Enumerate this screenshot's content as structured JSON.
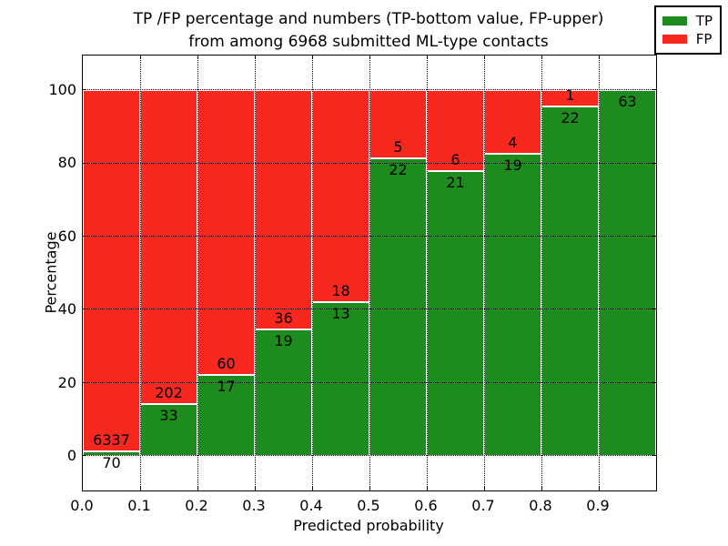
{
  "title": {
    "line1": "TP /FP percentage and numbers (TP-bottom value, FP-upper)",
    "line2": "from among 6968 submitted ML-type contacts"
  },
  "y_axis": {
    "label": "Percentage",
    "tick_labels": [
      "0",
      "20",
      "40",
      "60",
      "80",
      "100"
    ],
    "tick_values": [
      0,
      20,
      40,
      60,
      80,
      100
    ]
  },
  "x_axis": {
    "label": "Predicted probability",
    "tick_labels": [
      "0.0",
      "0.1",
      "0.2",
      "0.3",
      "0.4",
      "0.5",
      "0.6",
      "0.7",
      "0.8",
      "0.9"
    ],
    "tick_values": [
      0.0,
      0.1,
      0.2,
      0.3,
      0.4,
      0.5,
      0.6,
      0.7,
      0.8,
      0.9
    ]
  },
  "legend": {
    "position": "upper right",
    "items": [
      {
        "label": "TP",
        "color": "#1e8b1e"
      },
      {
        "label": "FP",
        "color": "#f8281e"
      }
    ]
  },
  "colors": {
    "tp_green": "#1e8b1e",
    "fp_red": "#f8281e",
    "grid": "#000000"
  },
  "chart_data": {
    "type": "bar",
    "stacked": true,
    "normalized_to_percent": true,
    "title": "TP /FP percentage and numbers (TP-bottom value, FP-upper) from among 6968 submitted ML-type contacts",
    "xlabel": "Predicted probability",
    "ylabel": "Percentage",
    "grid": true,
    "legend_position": "upper right",
    "xlim": [
      0.0,
      1.0
    ],
    "ylim": [
      -9.5,
      109.5
    ],
    "bin_width": 0.1,
    "categories": [
      "0.0-0.1",
      "0.1-0.2",
      "0.2-0.3",
      "0.3-0.4",
      "0.4-0.5",
      "0.5-0.6",
      "0.6-0.7",
      "0.7-0.8",
      "0.8-0.9",
      "0.9-1.0"
    ],
    "series": [
      {
        "name": "TP",
        "color": "#1e8b1e",
        "counts": [
          70,
          33,
          17,
          19,
          13,
          22,
          21,
          19,
          22,
          63
        ]
      },
      {
        "name": "FP",
        "color": "#f8281e",
        "counts": [
          6337,
          202,
          60,
          36,
          18,
          5,
          6,
          4,
          1,
          0
        ]
      }
    ],
    "tp_percent": [
      1.09,
      14.04,
      22.08,
      34.55,
      41.94,
      81.48,
      77.78,
      82.61,
      95.65,
      100.0
    ],
    "total_contacts": 6968
  }
}
